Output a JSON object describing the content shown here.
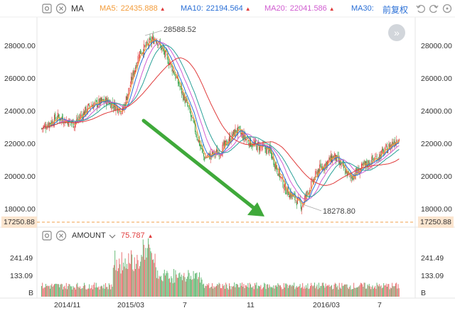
{
  "toolbar": {
    "indicator_label": "MA",
    "ma_lines": [
      {
        "name": "MA5:",
        "value": "22435.888",
        "color": "#f39c3a"
      },
      {
        "name": "MA10:",
        "value": "22194.564",
        "color": "#2a6fd6"
      },
      {
        "name": "MA20:",
        "value": "22041.586",
        "color": "#d05cd0"
      },
      {
        "name": "MA30:",
        "value": "",
        "color": "#2a6fd6"
      }
    ],
    "adjust_label": "前复权",
    "icons": [
      "gear-icon",
      "close-icon",
      "undo-icon",
      "redo-icon",
      "reset-icon"
    ]
  },
  "price_axis": {
    "left_labels": [
      "28000.00",
      "26000.00",
      "24000.00",
      "22000.00",
      "20000.00",
      "18000.00"
    ],
    "right_labels": [
      "28000.00",
      "26000.00",
      "24000.00",
      "22000.00",
      "20000.00",
      "18000.00"
    ],
    "current_price_left": "17250.88",
    "current_price_right": "17250.88"
  },
  "annotations": {
    "high": "28588.52",
    "low": "18278.80"
  },
  "volume_panel": {
    "indicator_label": "AMOUNT",
    "value": "75.787",
    "value_color": "#e03c3c",
    "left_labels": [
      "241.49",
      "133.09",
      "B"
    ],
    "right_labels": [
      "241.49",
      "133.09",
      "B"
    ]
  },
  "time_axis": {
    "labels": [
      "2014/11",
      "2015/03",
      "7",
      "11",
      "2016/03",
      "7"
    ]
  },
  "colors": {
    "up": "#e03c3c",
    "down": "#2ea043",
    "ma5": "#f39c3a",
    "ma10": "#2a6fd6",
    "ma20": "#d05cd0",
    "ma30": "#2aa198",
    "ma60": "#e03c3c",
    "arrow": "#3fa93a"
  },
  "chart_data": {
    "type": "candlestick",
    "x_range": [
      "2014/11",
      "2016/08"
    ],
    "y_range": [
      17250.88,
      29000
    ],
    "close_path": [
      [
        "2014/10",
        23000
      ],
      [
        "2014/11",
        23700
      ],
      [
        "2014/12",
        23300
      ],
      [
        "2015/01",
        24400
      ],
      [
        "2015/02",
        24700
      ],
      [
        "2015/03",
        24100
      ],
      [
        "2015/04",
        27600
      ],
      [
        "2015/05",
        28588.52
      ],
      [
        "2015/06",
        26800
      ],
      [
        "2015/07",
        24300
      ],
      [
        "2015/08",
        21200
      ],
      [
        "2015/09",
        21600
      ],
      [
        "2015/10",
        22900
      ],
      [
        "2015/11",
        22000
      ],
      [
        "2015/12",
        21700
      ],
      [
        "2016/01",
        19300
      ],
      [
        "2016/02",
        18278.8
      ],
      [
        "2016/03",
        20400
      ],
      [
        "2016/04",
        21300
      ],
      [
        "2016/05",
        20000
      ],
      [
        "2016/06",
        20800
      ],
      [
        "2016/07",
        21500
      ],
      [
        "2016/08",
        22500
      ]
    ]
  }
}
